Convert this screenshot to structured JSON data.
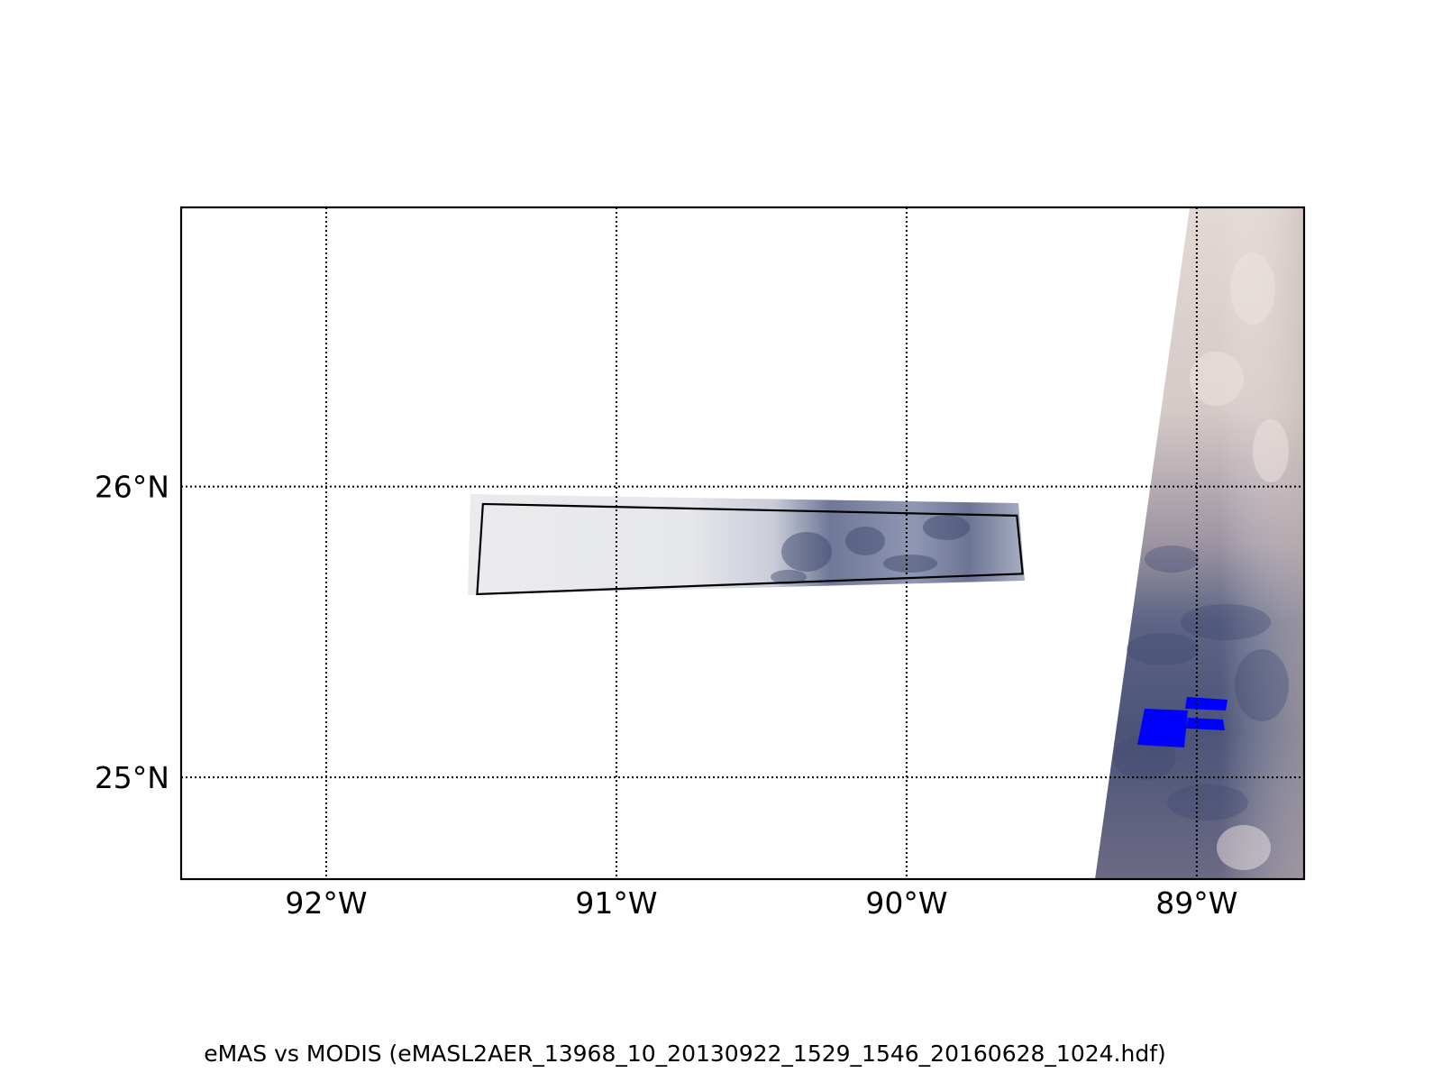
{
  "map": {
    "longitude_range": [
      -92.5,
      -88.63
    ],
    "latitude_range": [
      24.65,
      26.96
    ],
    "meridians": [
      {
        "value": -92,
        "label": "92°W"
      },
      {
        "value": -91,
        "label": "91°W"
      },
      {
        "value": -90,
        "label": "90°W"
      },
      {
        "value": -89,
        "label": "89°W"
      }
    ],
    "parallels": [
      {
        "value": 26,
        "label": "26°N"
      },
      {
        "value": 25,
        "label": "25°N"
      }
    ],
    "grid": "dotted",
    "emas_outline": [
      [
        -91.46,
        25.94
      ],
      [
        -89.62,
        25.9
      ],
      [
        -89.6,
        25.7
      ],
      [
        -91.48,
        25.63
      ]
    ],
    "colors": {
      "frame": "#000000",
      "outline": "#000000",
      "highlight": "#0000ff",
      "modis_light": "#d9cdc9",
      "modis_dark": "#4a5275",
      "emas_light": "#e8e8ec",
      "emas_dark": "#3e4a6e"
    }
  },
  "caption": "eMAS vs MODIS (eMASL2AER_13968_10_20130922_1529_1546_20160628_1024.hdf)"
}
